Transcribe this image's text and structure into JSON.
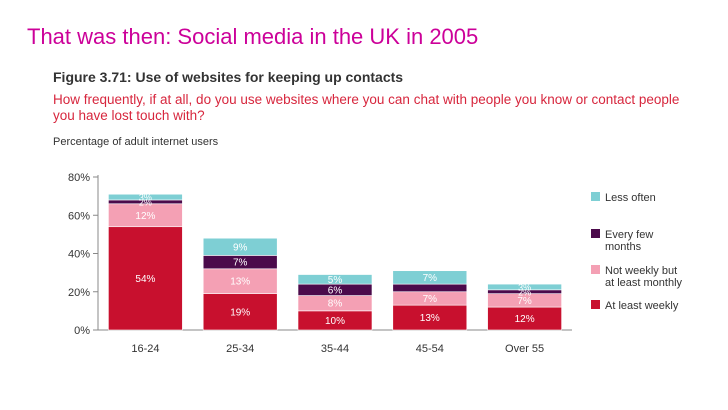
{
  "slide": {
    "title": "That was then: Social media in the UK in 2005"
  },
  "figure": {
    "title": "Figure 3.71: Use of websites for keeping up contacts",
    "question": "How frequently, if at all, do you use websites where you can chat with people you know or contact people you have lost touch with?",
    "subtitle": "Percentage of adult internet users"
  },
  "chart_data": {
    "type": "bar",
    "stacked": true,
    "categories": [
      "16-24",
      "25-34",
      "35-44",
      "45-54",
      "Over 55"
    ],
    "ylim": [
      0,
      80
    ],
    "yticks": [
      "0%",
      "20%",
      "40%",
      "60%",
      "80%"
    ],
    "series": [
      {
        "name": "At least weekly",
        "color": "#c8102e",
        "labelColor": "#ffffff",
        "values": [
          54,
          19,
          10,
          13,
          12
        ],
        "labels": [
          "54%",
          "19%",
          "10%",
          "13%",
          "12%"
        ]
      },
      {
        "name": "Not weekly but at least monthly",
        "color": "#f4a0b4",
        "labelColor": "#ffffff",
        "values": [
          12,
          13,
          8,
          7,
          7
        ],
        "labels": [
          "12%",
          "13%",
          "8%",
          "7%",
          "7%"
        ]
      },
      {
        "name": "Every few months",
        "color": "#4b0a4b",
        "labelColor": "#ffffff",
        "values": [
          2,
          7,
          6,
          4,
          2
        ],
        "labels": [
          "2%",
          "7%",
          "6%",
          "",
          "2%"
        ]
      },
      {
        "name": "Less often",
        "color": "#7ecfd4",
        "labelColor": "#ffffff",
        "values": [
          3,
          9,
          5,
          7,
          3
        ],
        "labels": [
          "3%",
          "9%",
          "5%",
          "7%",
          "3%"
        ]
      }
    ],
    "legend": [
      {
        "lines": [
          "Less often"
        ],
        "color": "#7ecfd4"
      },
      {
        "lines": [
          "Every few",
          "months"
        ],
        "color": "#4b0a4b"
      },
      {
        "lines": [
          "Not weekly but",
          "at least monthly"
        ],
        "color": "#f4a0b4"
      },
      {
        "lines": [
          "At least weekly"
        ],
        "color": "#c8102e"
      }
    ],
    "legend_position": "right"
  }
}
